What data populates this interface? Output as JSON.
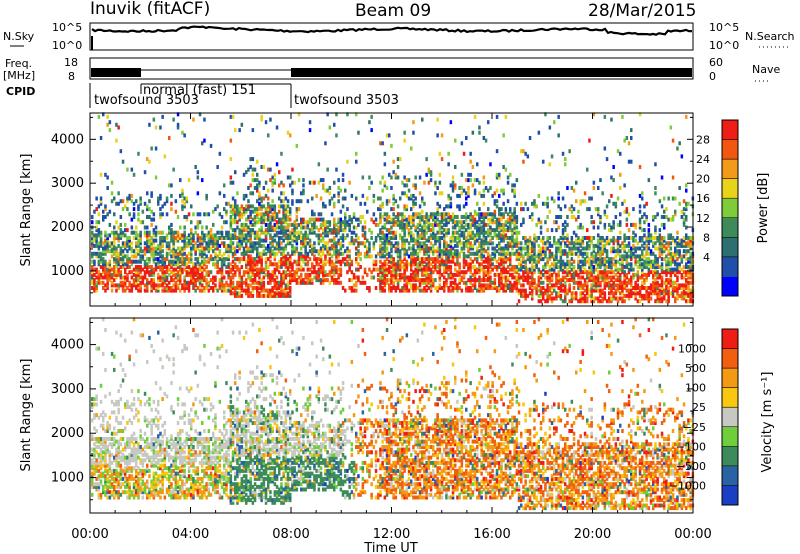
{
  "header": {
    "station": "Inuvik (fitACF)",
    "beam": "Beam 09",
    "date": "28/Mar/2015"
  },
  "strips": {
    "nsky_label": "N.Sky",
    "nsky_ticks": [
      "10^5",
      "10^0"
    ],
    "nsearch_label": "N.Search",
    "nsearch_ticks": [
      "10^5",
      "10^0"
    ],
    "freq_label": "Freq.",
    "freq_unit": "[MHz]",
    "freq_ticks": [
      "18",
      "8"
    ],
    "nave_label": "Nave",
    "nave_ticks": [
      "60",
      "0"
    ],
    "cpid_label": "CPID",
    "cpid_entries": [
      {
        "name": "twofsound 3503",
        "start_hour": 0.0,
        "end_hour": 2.0,
        "level": "low"
      },
      {
        "name": "normal (fast) 151",
        "start_hour": 2.0,
        "end_hour": 8.0,
        "level": "high"
      },
      {
        "name": "twofsound 3503",
        "start_hour": 8.0,
        "end_hour": 24.0,
        "level": "low"
      }
    ]
  },
  "chart_data": [
    {
      "type": "heatmap",
      "name": "power",
      "ylabel": "Slant Range [km]",
      "xlim": [
        0,
        24
      ],
      "ylim": [
        200,
        4600
      ],
      "y_ticks": [
        1000,
        2000,
        3000,
        4000
      ],
      "colorbar": {
        "label": "Power [dB]",
        "tick_labels": [
          "28",
          "24",
          "20",
          "16",
          "12",
          "8",
          "4"
        ],
        "range": [
          0,
          32
        ],
        "colors": [
          "#0000ff",
          "#1f4fa8",
          "#2e6f72",
          "#3d8b5a",
          "#7fcc3a",
          "#e8d21a",
          "#f29a1a",
          "#f2570f",
          "#ee1d15"
        ]
      }
    },
    {
      "type": "heatmap",
      "name": "velocity",
      "ylabel": "Slant Range [km]",
      "xlabel": "Time UT",
      "xlim": [
        0,
        24
      ],
      "ylim": [
        200,
        4600
      ],
      "y_ticks": [
        1000,
        2000,
        3000,
        4000
      ],
      "x_tick_labels": [
        "00:00",
        "04:00",
        "08:00",
        "12:00",
        "16:00",
        "20:00",
        "00:00"
      ],
      "colorbar": {
        "label": "Velocity [m s⁻¹]",
        "tick_labels": [
          "1000",
          "500",
          "100",
          "25",
          "−25",
          "−100",
          "−500",
          "−1000"
        ],
        "colors": [
          "#1a3fc4",
          "#2a62a6",
          "#3d8b5a",
          "#6fcf3a",
          "#c8c8c2",
          "#f7c80f",
          "#f39a12",
          "#f0600f",
          "#ee1d15"
        ]
      }
    }
  ]
}
